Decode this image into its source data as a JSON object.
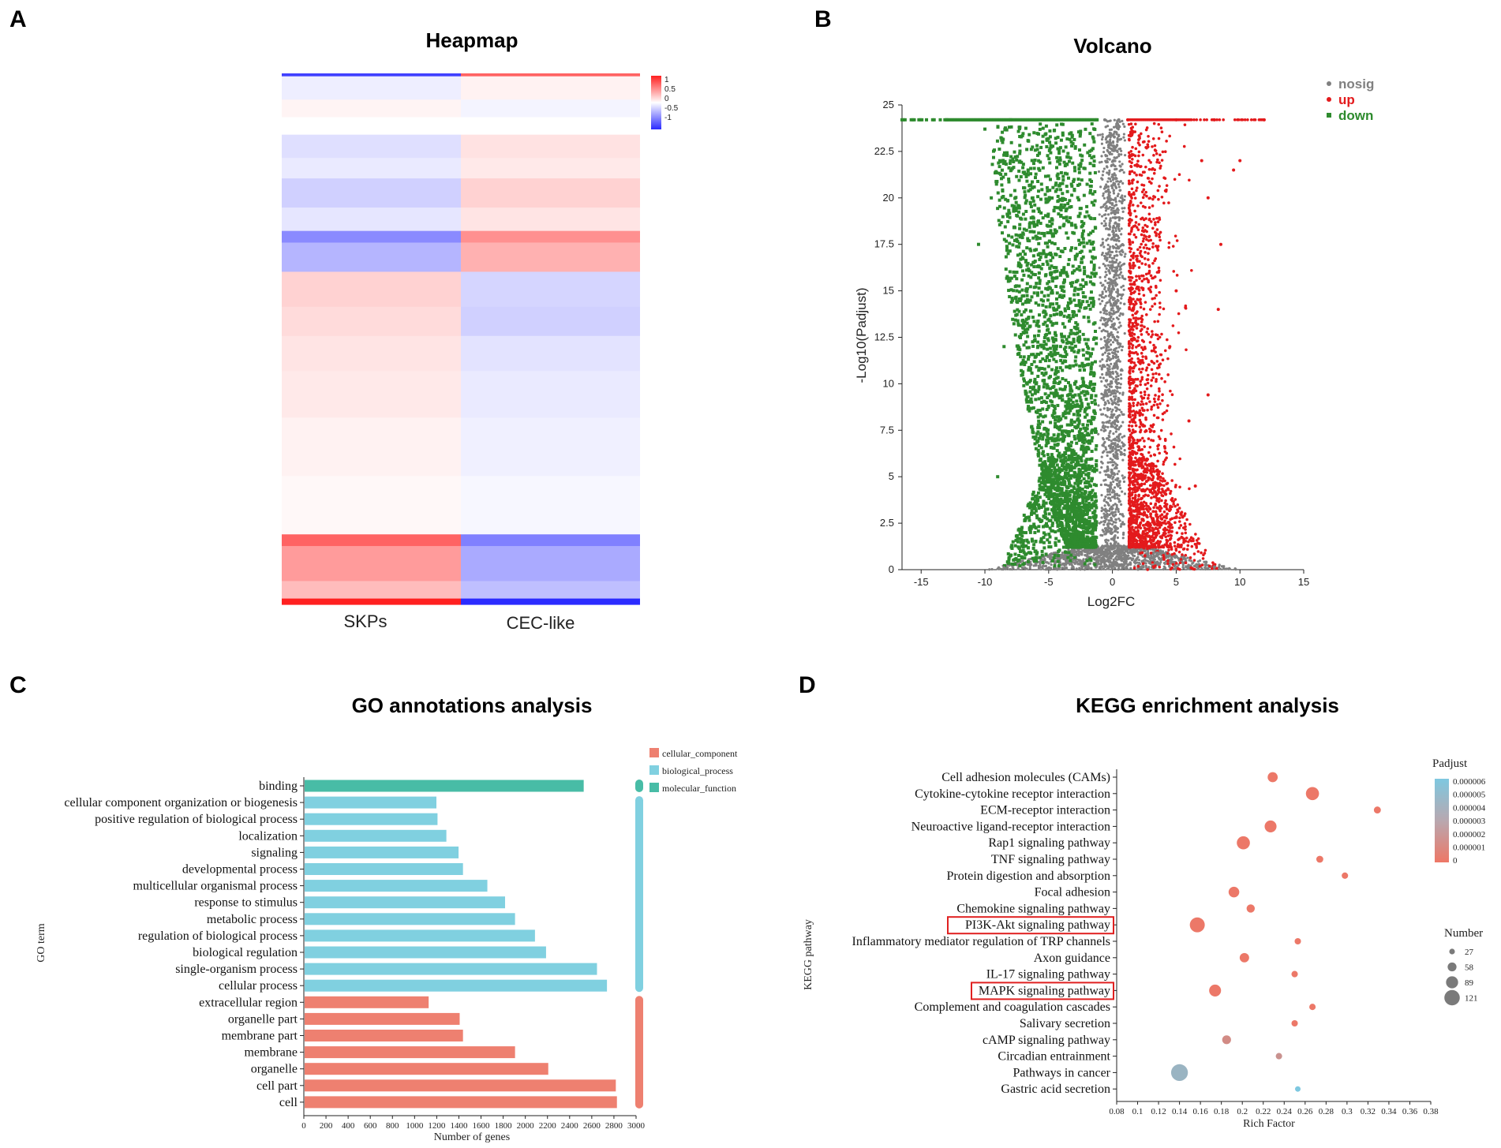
{
  "panels": {
    "a": "A",
    "b": "B",
    "c": "C",
    "d": "D"
  },
  "chart_data": [
    {
      "type": "heatmap",
      "panel": "A",
      "title": "Heapmap",
      "columns": [
        "SKPs",
        "CEC-like"
      ],
      "color_scale": {
        "min": -1,
        "max": 1,
        "ticks": [
          "1",
          "0.5",
          "0",
          "-0.5",
          "-1"
        ],
        "low_color": "#2b2bff",
        "mid_color": "#ffffff",
        "high_color": "#ff2020"
      },
      "row_blocks": [
        {
          "rows": 1,
          "values": [
            -0.9,
            0.7
          ]
        },
        {
          "rows": 8,
          "values": [
            -0.08,
            0.06
          ]
        },
        {
          "rows": 6,
          "values": [
            0.05,
            -0.05
          ]
        },
        {
          "rows": 6,
          "values": [
            0.0,
            0.0
          ]
        },
        {
          "rows": 8,
          "values": [
            -0.15,
            0.13
          ]
        },
        {
          "rows": 7,
          "values": [
            -0.1,
            0.1
          ]
        },
        {
          "rows": 10,
          "values": [
            -0.22,
            0.2
          ]
        },
        {
          "rows": 8,
          "values": [
            -0.12,
            0.12
          ]
        },
        {
          "rows": 4,
          "values": [
            -0.55,
            0.5
          ]
        },
        {
          "rows": 10,
          "values": [
            -0.35,
            0.35
          ]
        },
        {
          "rows": 12,
          "values": [
            0.2,
            -0.2
          ]
        },
        {
          "rows": 10,
          "values": [
            0.16,
            -0.22
          ]
        },
        {
          "rows": 12,
          "values": [
            0.12,
            -0.13
          ]
        },
        {
          "rows": 16,
          "values": [
            0.1,
            -0.1
          ]
        },
        {
          "rows": 20,
          "values": [
            0.06,
            -0.07
          ]
        },
        {
          "rows": 20,
          "values": [
            0.03,
            -0.04
          ]
        },
        {
          "rows": 4,
          "values": [
            0.7,
            -0.6
          ]
        },
        {
          "rows": 12,
          "values": [
            0.45,
            -0.4
          ]
        },
        {
          "rows": 6,
          "values": [
            0.3,
            -0.3
          ]
        },
        {
          "rows": 2,
          "values": [
            1.0,
            -1.0
          ]
        }
      ]
    },
    {
      "type": "scatter",
      "panel": "B",
      "title": "Volcano",
      "xlabel": "Log2FC",
      "ylabel": "-Log10(Padjust)",
      "xlim": [
        -16.5,
        15
      ],
      "ylim": [
        0,
        25
      ],
      "xticks": [
        "-15",
        "-10",
        "-5",
        "0",
        "5",
        "10",
        "15"
      ],
      "yticks": [
        "0",
        "2.5",
        "5",
        "7.5",
        "10",
        "12.5",
        "15",
        "17.5",
        "20",
        "22.5",
        "25"
      ],
      "legend": [
        {
          "name": "nosig",
          "color": "#808080"
        },
        {
          "name": "up",
          "color": "#e31a1c"
        },
        {
          "name": "down",
          "color": "#2e8b2e"
        }
      ],
      "series": [
        {
          "name": "nosig",
          "values": [
            [
              -0.6,
              24.2
            ],
            [
              0.5,
              24.2
            ],
            [
              -0.2,
              23.0
            ],
            [
              0.3,
              18.0
            ],
            [
              -0.4,
              12.0
            ],
            [
              0.2,
              8.0
            ],
            [
              -3.0,
              0.8
            ],
            [
              3.5,
              0.9
            ],
            [
              -6.0,
              0.3
            ],
            [
              6.5,
              0.2
            ],
            [
              -8.5,
              0.1
            ],
            [
              8.0,
              0.15
            ]
          ]
        },
        {
          "name": "up",
          "values": [
            [
              1.2,
              24.2
            ],
            [
              5.0,
              24.2
            ],
            [
              8.0,
              24.2
            ],
            [
              11.9,
              24.2
            ],
            [
              10.0,
              22.0
            ],
            [
              9.5,
              21.5
            ],
            [
              7.0,
              22.0
            ],
            [
              7.5,
              20.0
            ],
            [
              8.5,
              17.5
            ],
            [
              8.3,
              14.0
            ],
            [
              5.0,
              15.0
            ],
            [
              7.5,
              9.4
            ],
            [
              4.5,
              12.0
            ],
            [
              6.0,
              8.0
            ],
            [
              6.5,
              4.5
            ],
            [
              3.0,
              3.0
            ],
            [
              2.5,
              1.5
            ]
          ]
        },
        {
          "name": "down",
          "values": [
            [
              -16.5,
              24.2
            ],
            [
              -13.0,
              24.2
            ],
            [
              -8.0,
              24.2
            ],
            [
              -1.2,
              24.2
            ],
            [
              -10.0,
              23.7
            ],
            [
              -10.5,
              17.5
            ],
            [
              -9.5,
              20.0
            ],
            [
              -8.0,
              22.0
            ],
            [
              -7.5,
              15.0
            ],
            [
              -8.5,
              12.0
            ],
            [
              -6.0,
              10.0
            ],
            [
              -5.0,
              6.0
            ],
            [
              -4.0,
              3.0
            ],
            [
              -3.0,
              1.5
            ],
            [
              -9.0,
              5.0
            ]
          ]
        }
      ]
    },
    {
      "type": "bar",
      "panel": "C",
      "orientation": "horizontal",
      "title": "GO annotations analysis",
      "xlabel": "Number of genes",
      "ylabel": "GO term",
      "xlim": [
        0,
        3000
      ],
      "xticks": [
        "0",
        "200",
        "400",
        "600",
        "800",
        "1000",
        "1200",
        "1400",
        "1600",
        "1800",
        "2000",
        "2200",
        "2400",
        "2600",
        "2800",
        "3000"
      ],
      "categories": [
        "binding",
        "cellular component organization or biogenesis",
        "positive regulation of biological process",
        "localization",
        "signaling",
        "developmental process",
        "multicellular organismal process",
        "response to stimulus",
        "metabolic process",
        "regulation of biological process",
        "biological regulation",
        "single-organism process",
        "cellular process",
        "extracellular region",
        "organelle part",
        "membrane part",
        "membrane",
        "organelle",
        "cell part",
        "cell"
      ],
      "values": [
        2520,
        1190,
        1200,
        1280,
        1390,
        1430,
        1650,
        1810,
        1900,
        2080,
        2180,
        2640,
        2730,
        1120,
        1400,
        1430,
        1900,
        2200,
        2810,
        2820
      ],
      "groups": [
        "molecular_function",
        "biological_process",
        "biological_process",
        "biological_process",
        "biological_process",
        "biological_process",
        "biological_process",
        "biological_process",
        "biological_process",
        "biological_process",
        "biological_process",
        "biological_process",
        "biological_process",
        "cellular_component",
        "cellular_component",
        "cellular_component",
        "cellular_component",
        "cellular_component",
        "cellular_component",
        "cellular_component"
      ],
      "legend": [
        {
          "name": "cellular_component",
          "color": "#ee8070"
        },
        {
          "name": "biological_process",
          "color": "#80d0e0"
        },
        {
          "name": "molecular_function",
          "color": "#48bca6"
        }
      ]
    },
    {
      "type": "scatter",
      "panel": "D",
      "subtype": "bubble",
      "title": "KEGG enrichment analysis",
      "xlabel": "Rich Factor",
      "ylabel": "KEGG pathway",
      "xlim": [
        0.08,
        0.38
      ],
      "xticks": [
        "0.08",
        "0.1",
        "0.12",
        "0.14",
        "0.16",
        "0.18",
        "0.2",
        "0.22",
        "0.24",
        "0.26",
        "0.28",
        "0.3",
        "0.32",
        "0.34",
        "0.36",
        "0.38"
      ],
      "categories": [
        "Cell adhesion molecules (CAMs)",
        "Cytokine-cytokine receptor interaction",
        "ECM-receptor interaction",
        "Neuroactive ligand-receptor interaction",
        "Rap1 signaling pathway",
        "TNF signaling pathway",
        "Protein digestion and absorption",
        "Focal adhesion",
        "Chemokine signaling pathway",
        "PI3K-Akt signaling pathway",
        "Inflammatory mediator regulation of TRP channels",
        "Axon guidance",
        "IL-17 signaling pathway",
        "MAPK signaling pathway",
        "Complement and coagulation cascades",
        "Salivary secretion",
        "cAMP signaling pathway",
        "Circadian entrainment",
        "Pathways in cancer",
        "Gastric acid secretion"
      ],
      "rich_factor": [
        0.229,
        0.267,
        0.329,
        0.227,
        0.201,
        0.274,
        0.298,
        0.192,
        0.208,
        0.157,
        0.253,
        0.202,
        0.25,
        0.174,
        0.267,
        0.25,
        0.185,
        0.235,
        0.14,
        0.253
      ],
      "number": [
        55,
        80,
        30,
        70,
        80,
        30,
        25,
        60,
        40,
        95,
        25,
        50,
        25,
        70,
        25,
        25,
        45,
        25,
        110,
        18
      ],
      "padjust": [
        1e-07,
        1e-07,
        1e-07,
        1e-07,
        1e-07,
        1e-07,
        1e-07,
        1e-07,
        1e-07,
        1e-07,
        1e-07,
        1e-07,
        1e-07,
        1e-07,
        1e-07,
        1e-07,
        1.5e-06,
        2e-06,
        4.5e-06,
        6e-06
      ],
      "highlighted": [
        "PI3K-Akt signaling pathway",
        "MAPK signaling pathway"
      ],
      "padjust_legend": {
        "title": "Padjust",
        "ticks": [
          "0.000006",
          "0.000005",
          "0.000004",
          "0.000003",
          "0.000002",
          "0.000001",
          "0"
        ],
        "low_color": "#ee7766",
        "high_color": "#7ec8e0"
      },
      "number_legend": {
        "title": "Number",
        "values": [
          "27",
          "58",
          "89",
          "121"
        ]
      }
    }
  ]
}
